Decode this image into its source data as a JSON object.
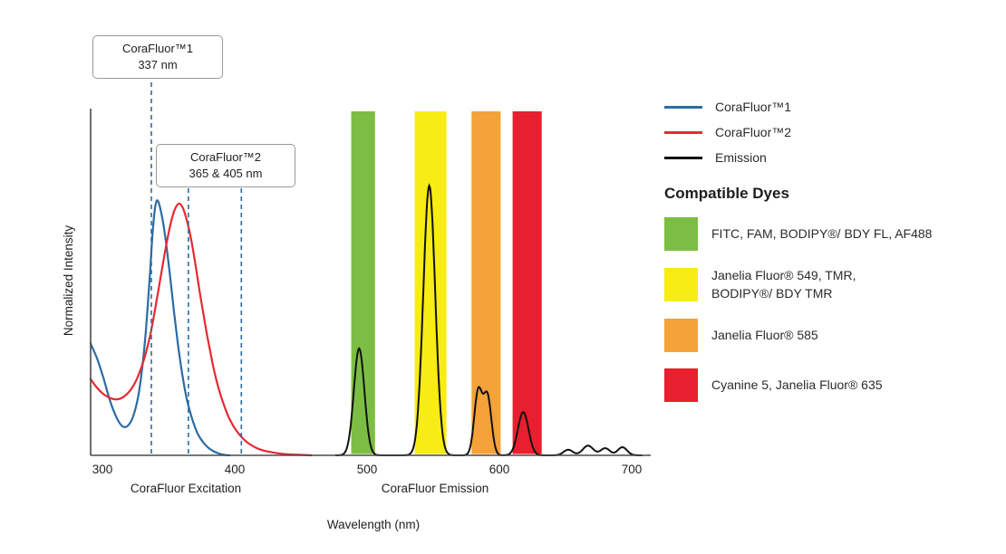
{
  "figure": {
    "callouts": [
      {
        "line1": "CoraFluor™1",
        "line2": "337 nm"
      },
      {
        "line1": "CoraFluor™2",
        "line2": "365 & 405 nm"
      }
    ],
    "region_labels": {
      "excitation": "CoraFluor Excitation",
      "emission": "CoraFluor Emission"
    },
    "xlabel": "Wavelength (nm)",
    "ylabel": "Normalized Intensity"
  },
  "legend": {
    "entries": [
      {
        "label": "CoraFluor™1",
        "color": "#2b6ca3"
      },
      {
        "label": "CoraFluor™2",
        "color": "#e42a33"
      },
      {
        "label": "Emission",
        "color": "#111111"
      }
    ],
    "dyes_heading": "Compatible Dyes",
    "dyes": [
      {
        "label": "FITC, FAM, BODIPY®/ BDY FL, AF488",
        "color": "#7cbe43"
      },
      {
        "label": "Janelia Fluor® 549, TMR,\nBODIPY®/ BDY TMR",
        "color": "#f7ec13"
      },
      {
        "label": "Janelia Fluor® 585",
        "color": "#f4a239"
      },
      {
        "label": "Cyanine 5, Janelia Fluor® 635",
        "color": "#e81f2e"
      }
    ]
  },
  "chart_data": {
    "type": "line",
    "title": "",
    "xlabel": "Wavelength (nm)",
    "ylabel": "Normalized Intensity",
    "x_ticks": [
      300,
      400,
      500,
      600,
      700
    ],
    "x_range": [
      295,
      715
    ],
    "y_range": [
      0,
      1.35
    ],
    "grid": false,
    "legend_position": "right",
    "marker_color": "#2b6ca3",
    "dashed_markers_nm": [
      337,
      365,
      405
    ],
    "bands": [
      {
        "name": "green",
        "color": "#7cbe43",
        "range": [
          488,
          506
        ]
      },
      {
        "name": "yellow",
        "color": "#f7ec13",
        "range": [
          536,
          560
        ]
      },
      {
        "name": "orange",
        "color": "#f4a239",
        "range": [
          579,
          601
        ]
      },
      {
        "name": "red",
        "color": "#e81f2e",
        "range": [
          610,
          632
        ]
      }
    ],
    "series": [
      {
        "name": "CoraFluor™1",
        "role": "excitation",
        "color": "#2b6ca3",
        "points": [
          [
            291,
            0.44
          ],
          [
            296,
            0.38
          ],
          [
            301,
            0.3
          ],
          [
            306,
            0.21
          ],
          [
            311,
            0.145
          ],
          [
            315,
            0.115
          ],
          [
            319,
            0.115
          ],
          [
            323,
            0.15
          ],
          [
            327,
            0.23
          ],
          [
            330,
            0.34
          ],
          [
            333,
            0.5
          ],
          [
            336,
            0.72
          ],
          [
            338,
            0.88
          ],
          [
            340,
            0.98
          ],
          [
            342,
            1.0
          ],
          [
            345,
            0.94
          ],
          [
            348,
            0.84
          ],
          [
            351,
            0.71
          ],
          [
            354,
            0.57
          ],
          [
            357,
            0.44
          ],
          [
            360,
            0.33
          ],
          [
            363,
            0.24
          ],
          [
            366,
            0.175
          ],
          [
            369,
            0.125
          ],
          [
            372,
            0.085
          ],
          [
            376,
            0.052
          ],
          [
            380,
            0.03
          ],
          [
            384,
            0.016
          ],
          [
            388,
            0.007
          ],
          [
            392,
            0.002
          ],
          [
            396,
            0
          ]
        ]
      },
      {
        "name": "CoraFluor™2",
        "role": "excitation",
        "color": "#e42a33",
        "points": [
          [
            291,
            0.3
          ],
          [
            296,
            0.265
          ],
          [
            301,
            0.24
          ],
          [
            306,
            0.225
          ],
          [
            311,
            0.22
          ],
          [
            316,
            0.23
          ],
          [
            321,
            0.255
          ],
          [
            326,
            0.3
          ],
          [
            331,
            0.37
          ],
          [
            336,
            0.47
          ],
          [
            340,
            0.58
          ],
          [
            344,
            0.7
          ],
          [
            348,
            0.82
          ],
          [
            352,
            0.92
          ],
          [
            355,
            0.97
          ],
          [
            358,
            0.99
          ],
          [
            361,
            0.97
          ],
          [
            364,
            0.92
          ],
          [
            367,
            0.85
          ],
          [
            370,
            0.76
          ],
          [
            373,
            0.66
          ],
          [
            376,
            0.565
          ],
          [
            379,
            0.475
          ],
          [
            382,
            0.395
          ],
          [
            385,
            0.32
          ],
          [
            388,
            0.26
          ],
          [
            391,
            0.21
          ],
          [
            395,
            0.155
          ],
          [
            399,
            0.115
          ],
          [
            403,
            0.085
          ],
          [
            407,
            0.062
          ],
          [
            411,
            0.045
          ],
          [
            416,
            0.03
          ],
          [
            421,
            0.02
          ],
          [
            427,
            0.013
          ],
          [
            433,
            0.008
          ],
          [
            440,
            0.004
          ],
          [
            448,
            0.002
          ],
          [
            458,
            0
          ]
        ]
      },
      {
        "name": "Emission",
        "role": "emission",
        "color": "#111111",
        "peaks": [
          {
            "center": 494,
            "sigma": 4.0,
            "height": 0.42
          },
          {
            "center": 547,
            "sigma": 4.5,
            "height": 1.06
          },
          {
            "center": 584,
            "sigma": 3.0,
            "height": 0.25
          },
          {
            "center": 591,
            "sigma": 3.0,
            "height": 0.23
          },
          {
            "center": 618,
            "sigma": 4.0,
            "height": 0.17
          },
          {
            "center": 652,
            "sigma": 3.5,
            "height": 0.022
          },
          {
            "center": 667,
            "sigma": 4.0,
            "height": 0.038
          },
          {
            "center": 680,
            "sigma": 3.5,
            "height": 0.028
          },
          {
            "center": 693,
            "sigma": 3.5,
            "height": 0.032
          }
        ]
      }
    ]
  }
}
